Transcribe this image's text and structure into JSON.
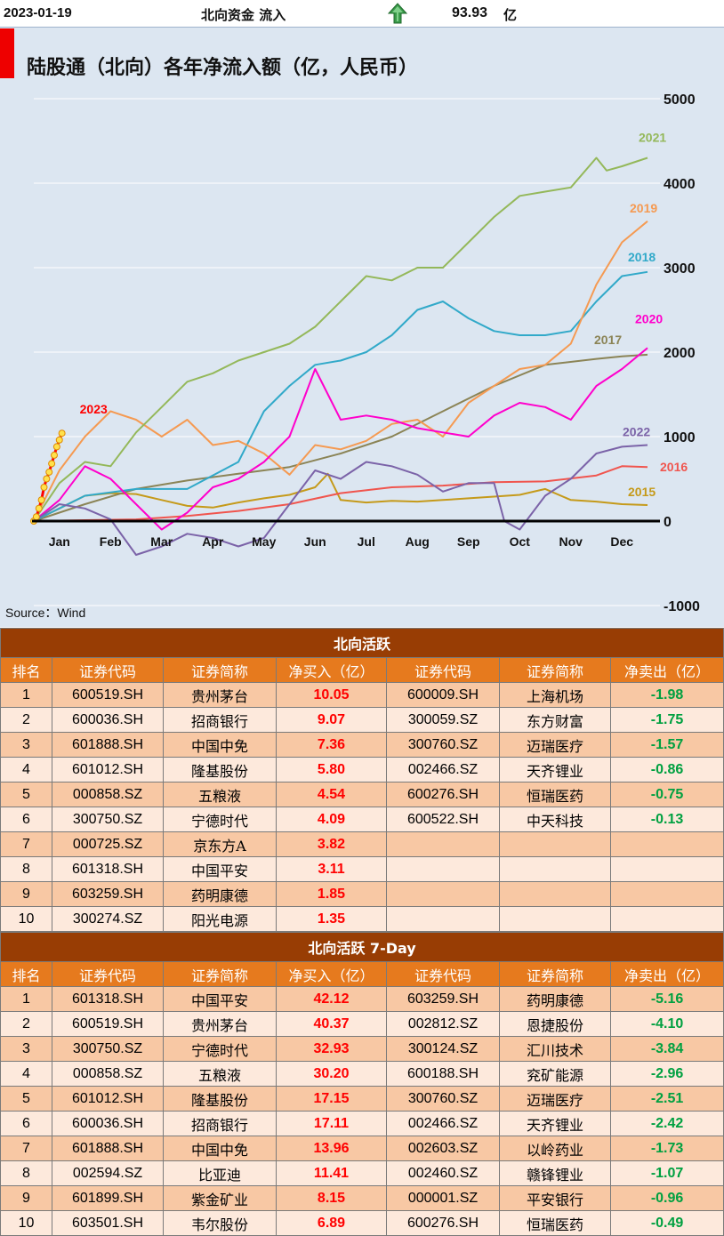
{
  "header": {
    "date": "2023-01-19",
    "label": "北向资金 流入",
    "value": "93.93",
    "unit": "亿",
    "arrow_icon": "up-arrow-icon"
  },
  "chart_data": {
    "type": "line",
    "title": "陆股通（北向）各年净流入额（亿，人民币）",
    "source": "Source：Wind",
    "ylim": [
      -1000,
      5000
    ],
    "yticks": [
      "5000",
      "4000",
      "3000",
      "2000",
      "1000",
      "0",
      "-1000"
    ],
    "ytick_values": [
      5000,
      4000,
      3000,
      2000,
      1000,
      0,
      -1000
    ],
    "months": [
      "Jan",
      "Feb",
      "Mar",
      "Apr",
      "May",
      "Jun",
      "Jul",
      "Aug",
      "Sep",
      "Oct",
      "Nov",
      "Dec"
    ],
    "xlim": [
      0,
      12
    ],
    "series": [
      {
        "name": "2015",
        "color": "#c59a1a",
        "x": [
          0,
          0.5,
          1,
          1.5,
          2,
          2.5,
          3,
          3.5,
          4,
          4.5,
          5,
          5.5,
          5.75,
          6,
          6.5,
          7,
          7.5,
          8,
          8.5,
          9,
          9.5,
          10,
          10.5,
          11,
          11.5,
          12
        ],
        "y": [
          0,
          150,
          300,
          330,
          320,
          250,
          180,
          160,
          220,
          270,
          310,
          400,
          560,
          250,
          220,
          240,
          230,
          250,
          270,
          290,
          310,
          380,
          250,
          230,
          200,
          190
        ]
      },
      {
        "name": "2016",
        "color": "#f0554e",
        "x": [
          0,
          1,
          2,
          3,
          4,
          5,
          6,
          7,
          8,
          9,
          10,
          11,
          11.5,
          12
        ],
        "y": [
          0,
          10,
          20,
          60,
          120,
          200,
          330,
          400,
          420,
          460,
          470,
          540,
          650,
          640
        ]
      },
      {
        "name": "2017",
        "color": "#8b8456",
        "x": [
          0,
          1,
          2,
          3,
          4,
          5,
          6,
          7,
          8,
          9,
          10,
          11,
          11.5,
          12
        ],
        "y": [
          0,
          200,
          380,
          480,
          560,
          640,
          800,
          1000,
          1300,
          1600,
          1850,
          1920,
          1950,
          1970
        ]
      },
      {
        "name": "2018",
        "color": "#31a9c9",
        "x": [
          0,
          1,
          2,
          3,
          4,
          4.5,
          5,
          5.5,
          6,
          6.5,
          7,
          7.5,
          8,
          8.5,
          9,
          9.5,
          10,
          10.5,
          11,
          11.5,
          12
        ],
        "y": [
          0,
          300,
          380,
          380,
          700,
          1300,
          1600,
          1850,
          1900,
          2000,
          2200,
          2500,
          2600,
          2400,
          2250,
          2200,
          2200,
          2250,
          2600,
          2900,
          2950
        ]
      },
      {
        "name": "2019",
        "color": "#f59a52",
        "x": [
          0,
          0.5,
          1,
          1.5,
          2,
          2.5,
          3,
          3.5,
          4,
          4.5,
          5,
          5.5,
          6,
          6.5,
          7,
          7.5,
          8,
          8.5,
          9,
          9.5,
          10,
          10.5,
          11,
          11.5,
          12
        ],
        "y": [
          0,
          600,
          1000,
          1300,
          1200,
          1000,
          1200,
          900,
          950,
          800,
          550,
          900,
          850,
          950,
          1150,
          1200,
          1000,
          1400,
          1600,
          1800,
          1850,
          2100,
          2800,
          3300,
          3550
        ]
      },
      {
        "name": "2020",
        "color": "#ff00cc",
        "x": [
          0,
          0.5,
          1,
          1.5,
          2,
          2.5,
          3,
          3.5,
          4,
          4.5,
          5,
          5.5,
          6,
          6.5,
          7,
          7.5,
          8,
          8.5,
          9,
          9.5,
          10,
          10.5,
          11,
          11.5,
          12
        ],
        "y": [
          0,
          250,
          650,
          500,
          200,
          -100,
          100,
          400,
          500,
          700,
          1000,
          1800,
          1200,
          1250,
          1200,
          1100,
          1050,
          1000,
          1250,
          1400,
          1350,
          1200,
          1600,
          1800,
          2050
        ]
      },
      {
        "name": "2021",
        "color": "#94b85a",
        "x": [
          0,
          0.5,
          1,
          1.5,
          2,
          2.5,
          3,
          3.5,
          4,
          4.5,
          5,
          5.5,
          6,
          6.5,
          7,
          7.5,
          8,
          8.5,
          9,
          9.5,
          10,
          10.5,
          11,
          11.2,
          11.5,
          12
        ],
        "y": [
          0,
          450,
          700,
          650,
          1050,
          1350,
          1650,
          1750,
          1900,
          2000,
          2100,
          2300,
          2600,
          2900,
          2850,
          3000,
          3000,
          3300,
          3600,
          3850,
          3900,
          3950,
          4300,
          4150,
          4200,
          4300
        ]
      },
      {
        "name": "2022",
        "color": "#7b63a8",
        "x": [
          0,
          0.5,
          1,
          1.5,
          2,
          2.5,
          3,
          3.5,
          4,
          4.5,
          5,
          5.5,
          6,
          6.5,
          7,
          7.5,
          8,
          8.5,
          9,
          9.2,
          9.5,
          10,
          10.5,
          11,
          11.5,
          12
        ],
        "y": [
          0,
          200,
          150,
          20,
          -400,
          -300,
          -150,
          -200,
          -300,
          -200,
          200,
          600,
          500,
          700,
          650,
          550,
          350,
          450,
          450,
          0,
          -100,
          300,
          500,
          800,
          880,
          900
        ]
      },
      {
        "name": "2023",
        "color": "#ff0000",
        "x": [
          0,
          0.05,
          0.1,
          0.15,
          0.2,
          0.25,
          0.3,
          0.35,
          0.4,
          0.45,
          0.5,
          0.55
        ],
        "y": [
          0,
          50,
          150,
          250,
          400,
          500,
          580,
          680,
          780,
          880,
          960,
          1040
        ]
      }
    ]
  },
  "tables": [
    {
      "title": "北向活跃",
      "headers": [
        "排名",
        "证券代码",
        "证券简称",
        "净买入（亿）",
        "证券代码",
        "证券简称",
        "净卖出（亿）"
      ],
      "rows": [
        [
          "1",
          "600519.SH",
          "贵州茅台",
          "10.05",
          "600009.SH",
          "上海机场",
          "-1.98"
        ],
        [
          "2",
          "600036.SH",
          "招商银行",
          "9.07",
          "300059.SZ",
          "东方财富",
          "-1.75"
        ],
        [
          "3",
          "601888.SH",
          "中国中免",
          "7.36",
          "300760.SZ",
          "迈瑞医疗",
          "-1.57"
        ],
        [
          "4",
          "601012.SH",
          "隆基股份",
          "5.80",
          "002466.SZ",
          "天齐锂业",
          "-0.86"
        ],
        [
          "5",
          "000858.SZ",
          "五粮液",
          "4.54",
          "600276.SH",
          "恒瑞医药",
          "-0.75"
        ],
        [
          "6",
          "300750.SZ",
          "宁德时代",
          "4.09",
          "600522.SH",
          "中天科技",
          "-0.13"
        ],
        [
          "7",
          "000725.SZ",
          "京东方A",
          "3.82",
          "",
          "",
          ""
        ],
        [
          "8",
          "601318.SH",
          "中国平安",
          "3.11",
          "",
          "",
          ""
        ],
        [
          "9",
          "603259.SH",
          "药明康德",
          "1.85",
          "",
          "",
          ""
        ],
        [
          "10",
          "300274.SZ",
          "阳光电源",
          "1.35",
          "",
          "",
          ""
        ]
      ]
    },
    {
      "title": "北向活跃 7-Day",
      "headers": [
        "排名",
        "证券代码",
        "证券简称",
        "净买入（亿）",
        "证券代码",
        "证券简称",
        "净卖出（亿）"
      ],
      "rows": [
        [
          "1",
          "601318.SH",
          "中国平安",
          "42.12",
          "603259.SH",
          "药明康德",
          "-5.16"
        ],
        [
          "2",
          "600519.SH",
          "贵州茅台",
          "40.37",
          "002812.SZ",
          "恩捷股份",
          "-4.10"
        ],
        [
          "3",
          "300750.SZ",
          "宁德时代",
          "32.93",
          "300124.SZ",
          "汇川技术",
          "-3.84"
        ],
        [
          "4",
          "000858.SZ",
          "五粮液",
          "30.20",
          "600188.SH",
          "兖矿能源",
          "-2.96"
        ],
        [
          "5",
          "601012.SH",
          "隆基股份",
          "17.15",
          "300760.SZ",
          "迈瑞医疗",
          "-2.51"
        ],
        [
          "6",
          "600036.SH",
          "招商银行",
          "17.11",
          "002466.SZ",
          "天齐锂业",
          "-2.42"
        ],
        [
          "7",
          "601888.SH",
          "中国中免",
          "13.96",
          "002603.SZ",
          "以岭药业",
          "-1.73"
        ],
        [
          "8",
          "002594.SZ",
          "比亚迪",
          "11.41",
          "002460.SZ",
          "赣锋锂业",
          "-1.07"
        ],
        [
          "9",
          "601899.SH",
          "紫金矿业",
          "8.15",
          "000001.SZ",
          "平安银行",
          "-0.96"
        ],
        [
          "10",
          "603501.SH",
          "韦尔股份",
          "6.89",
          "600276.SH",
          "恒瑞医药",
          "-0.49"
        ]
      ]
    }
  ]
}
